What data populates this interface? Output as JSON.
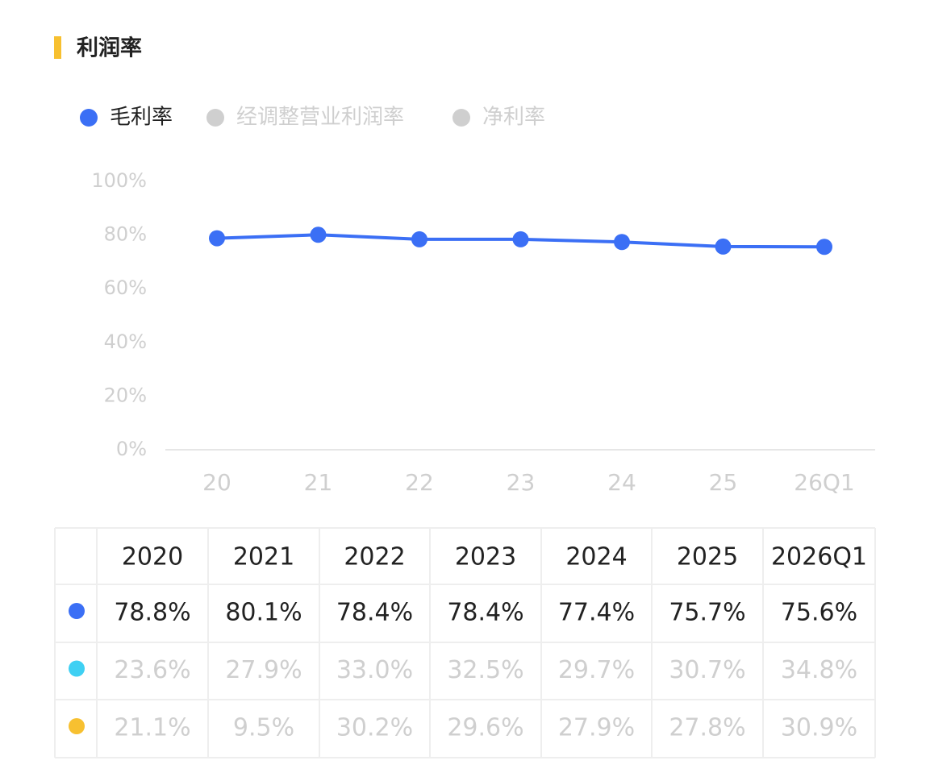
{
  "header": {
    "title": "利润率"
  },
  "chart_data": {
    "type": "line",
    "categories": [
      "20",
      "21",
      "22",
      "23",
      "24",
      "25",
      "26Q1"
    ],
    "series": [
      {
        "name": "毛利率",
        "color": "#3b6ff5",
        "visible": true,
        "values": [
          78.8,
          80.1,
          78.4,
          78.4,
          77.4,
          75.7,
          75.6
        ],
        "value_labels": [
          "78.8%",
          "80.1%",
          "78.4%",
          "78.4%",
          "77.4%",
          "75.7%",
          "75.6%"
        ]
      },
      {
        "name": "经调整营业利润率",
        "color": "#3fd0f3",
        "visible": false,
        "values": [
          23.6,
          27.9,
          33.0,
          32.5,
          29.7,
          30.7,
          34.8
        ],
        "value_labels": [
          "23.6%",
          "27.9%",
          "33.0%",
          "32.5%",
          "29.7%",
          "30.7%",
          "34.8%"
        ]
      },
      {
        "name": "净利率",
        "color": "#f7c030",
        "visible": false,
        "values": [
          21.1,
          9.5,
          30.2,
          29.6,
          27.9,
          27.8,
          30.9
        ],
        "value_labels": [
          "21.1%",
          "9.5%",
          "30.2%",
          "29.6%",
          "27.9%",
          "27.8%",
          "30.9%"
        ]
      }
    ],
    "ylim": [
      0,
      100
    ],
    "yticks": [
      {
        "value": 0,
        "label": "0%"
      },
      {
        "value": 20,
        "label": "20%"
      },
      {
        "value": 40,
        "label": "40%"
      },
      {
        "value": 60,
        "label": "60%"
      },
      {
        "value": 80,
        "label": "80%"
      },
      {
        "value": 100,
        "label": "100%"
      }
    ],
    "grid": false
  },
  "table": {
    "columns": [
      "2020",
      "2021",
      "2022",
      "2023",
      "2024",
      "2025",
      "2026Q1"
    ]
  }
}
